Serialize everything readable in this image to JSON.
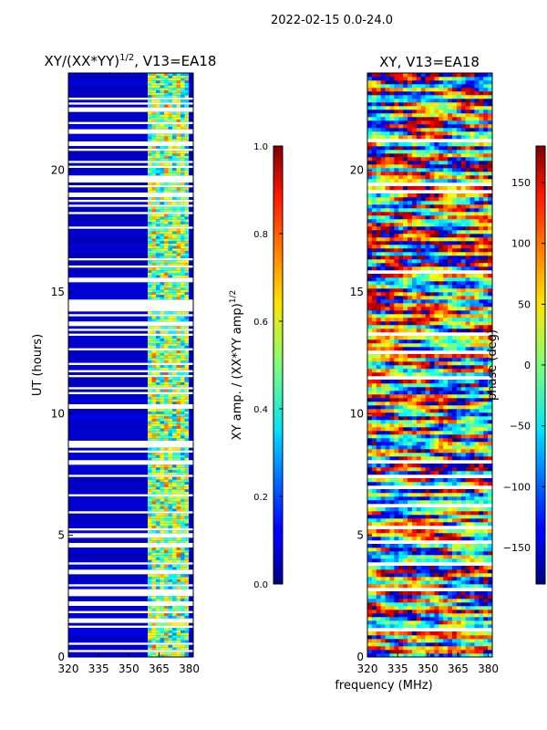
{
  "figure_title": "2022-02-15 0.0-24.0",
  "chart_data": [
    {
      "type": "heatmap",
      "title": "XY/(XX*YY)^1/2, V13=EA18",
      "title_main": "XY/(XX*YY)",
      "title_sup": "1/2",
      "title_tail": ", V13=EA18",
      "xlabel": "",
      "ylabel": "UT (hours)",
      "x_range": [
        320,
        382
      ],
      "x_ticks": [
        "320",
        "335",
        "350",
        "365",
        "380"
      ],
      "y_range": [
        0,
        24
      ],
      "y_ticks": [
        "0",
        "5",
        "10",
        "15",
        "20"
      ],
      "colorbar": {
        "label": "XY amp. / (XX*YY amp)",
        "label_sup": "1/2",
        "range": [
          0,
          1
        ],
        "ticks": [
          "0.0",
          "0.2",
          "0.4",
          "0.6",
          "0.8",
          "1.0"
        ],
        "colormap": "jet"
      }
    },
    {
      "type": "heatmap",
      "title": "XY, V13=EA18",
      "xlabel": "frequency (MHz)",
      "ylabel": "",
      "x_range": [
        320,
        382
      ],
      "x_ticks": [
        "320",
        "335",
        "350",
        "365",
        "380"
      ],
      "y_range": [
        0,
        24
      ],
      "y_ticks": [
        "0",
        "5",
        "10",
        "15",
        "20"
      ],
      "colorbar": {
        "label": "phase (deg)",
        "range": [
          -180,
          180
        ],
        "ticks": [
          "−150",
          "−100",
          "−50",
          "0",
          "50",
          "100",
          "150"
        ],
        "colormap": "jet"
      }
    }
  ]
}
